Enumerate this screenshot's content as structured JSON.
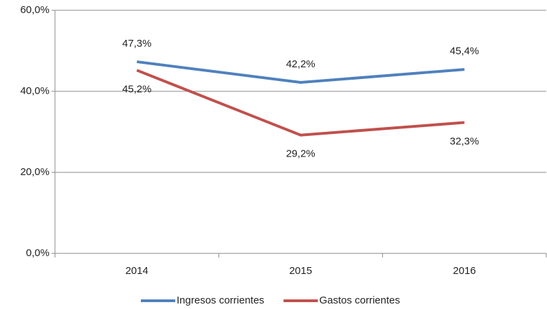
{
  "chart_data": {
    "type": "line",
    "categories": [
      "2014",
      "2015",
      "2016"
    ],
    "series": [
      {
        "name": "Ingresos corrientes",
        "color": "#4f81bd",
        "values": [
          47.3,
          42.2,
          45.4
        ],
        "value_labels": [
          "47,3%",
          "42,2%",
          "45,4%"
        ]
      },
      {
        "name": "Gastos corrientes",
        "color": "#c0504d",
        "values": [
          45.2,
          29.2,
          32.3
        ],
        "value_labels": [
          "45,2%",
          "29,2%",
          "32,3%"
        ]
      }
    ],
    "ylim": [
      0,
      60
    ],
    "yticks": [
      {
        "value": 0,
        "label": "0,0%"
      },
      {
        "value": 20,
        "label": "20,0%"
      },
      {
        "value": 40,
        "label": "40,0%"
      },
      {
        "value": 60,
        "label": "60,0%"
      }
    ],
    "grid": true,
    "legend": "bottom"
  }
}
